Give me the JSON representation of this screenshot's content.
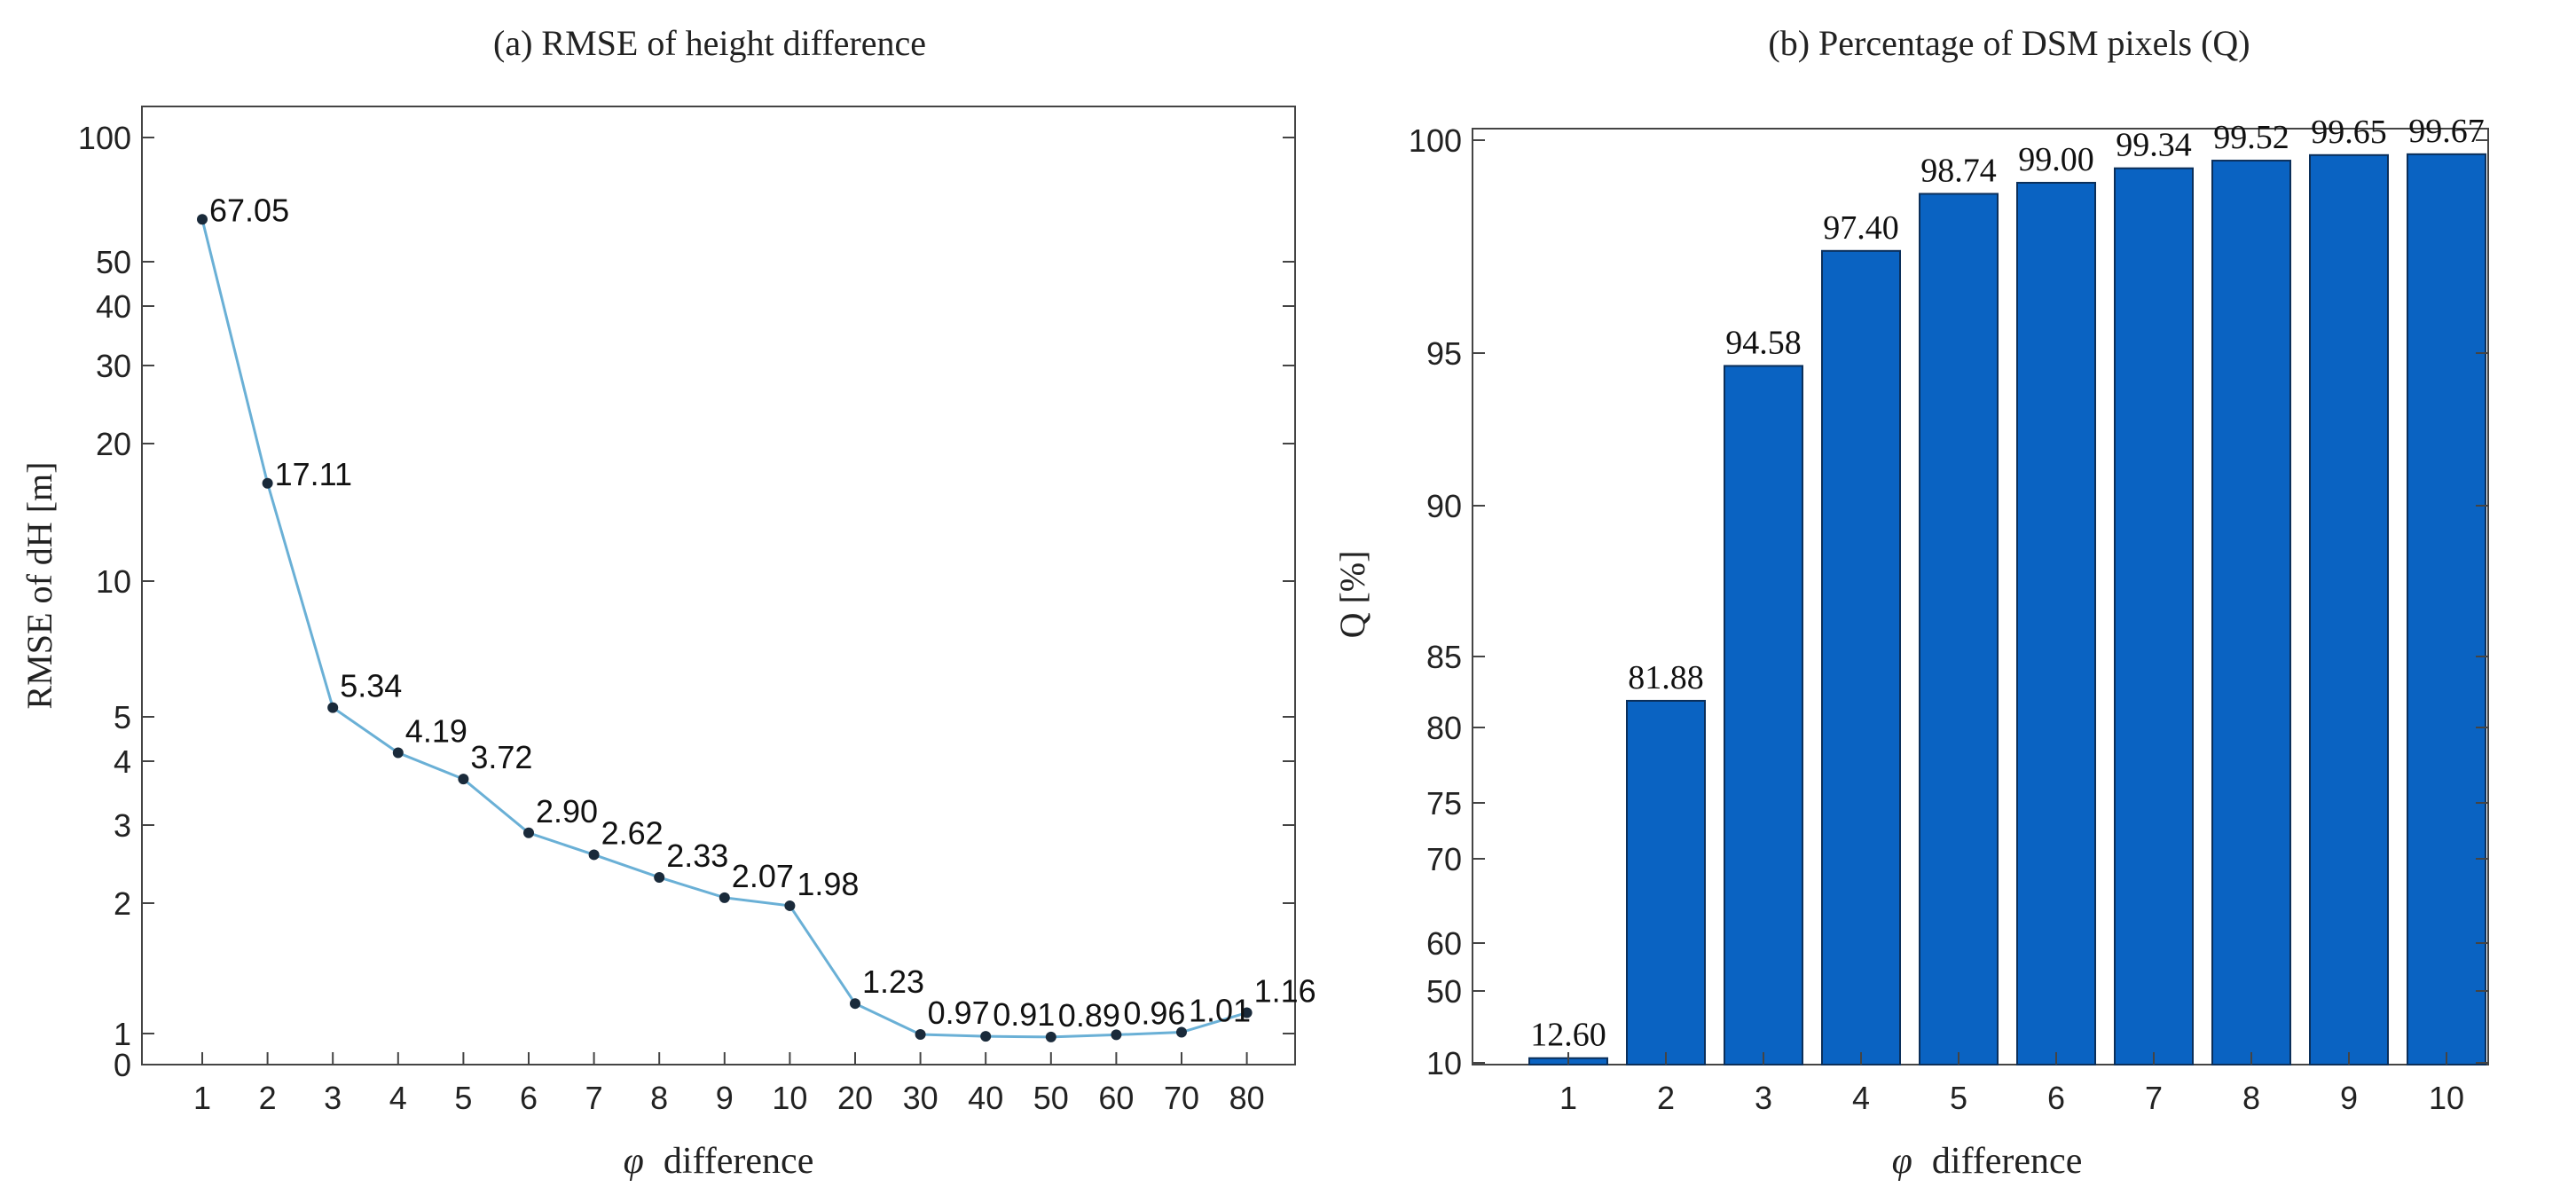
{
  "chart_data": [
    {
      "type": "line",
      "title": "(a) RMSE of height difference",
      "xlabel_symbol": "φ",
      "xlabel": "difference",
      "ylabel": "RMSE of dH  [m]",
      "categories": [
        "1",
        "2",
        "3",
        "4",
        "5",
        "6",
        "7",
        "8",
        "9",
        "10",
        "20",
        "30",
        "40",
        "50",
        "60",
        "70",
        "80"
      ],
      "values": [
        67.05,
        17.11,
        5.34,
        4.19,
        3.72,
        2.9,
        2.62,
        2.33,
        2.07,
        1.98,
        1.23,
        0.97,
        0.91,
        0.89,
        0.96,
        1.01,
        1.16
      ],
      "data_labels": [
        "67.05",
        "17.11",
        "5.34",
        "4.19",
        "3.72",
        "2.90",
        "2.62",
        "2.33",
        "2.07",
        "1.98",
        "1.23",
        "0.97",
        "0.91",
        "0.89",
        "0.96",
        "1.01",
        "1.16"
      ],
      "yticks": [
        0,
        1,
        2,
        3,
        4,
        5,
        10,
        20,
        30,
        40,
        50,
        100
      ],
      "ytick_labels": [
        "0",
        "1",
        "2",
        "3",
        "4",
        "5",
        "10",
        "20",
        "30",
        "40",
        "50",
        "100"
      ],
      "ylim": [
        0,
        100
      ],
      "line_color": "#6ab0d6",
      "marker_color": "#1a2a3a"
    },
    {
      "type": "bar",
      "title": "(b) Percentage of DSM pixels (Q)",
      "xlabel_symbol": "φ",
      "xlabel": "difference",
      "ylabel": "Q [%]",
      "categories": [
        "1",
        "2",
        "3",
        "4",
        "5",
        "6",
        "7",
        "8",
        "9",
        "10"
      ],
      "values": [
        12.6,
        81.88,
        94.58,
        97.4,
        98.74,
        99.0,
        99.34,
        99.52,
        99.65,
        99.67
      ],
      "data_labels": [
        "12.60",
        "81.88",
        "94.58",
        "97.40",
        "98.74",
        "99.00",
        "99.34",
        "99.52",
        "99.65",
        "99.67"
      ],
      "yticks": [
        10,
        50,
        60,
        70,
        75,
        80,
        85,
        90,
        95,
        100
      ],
      "ytick_labels": [
        "10",
        "50",
        "60",
        "70",
        "75",
        "80",
        "85",
        "90",
        "95",
        "100"
      ],
      "ylim": [
        10,
        100
      ],
      "bar_color": "#0a63c2"
    }
  ]
}
